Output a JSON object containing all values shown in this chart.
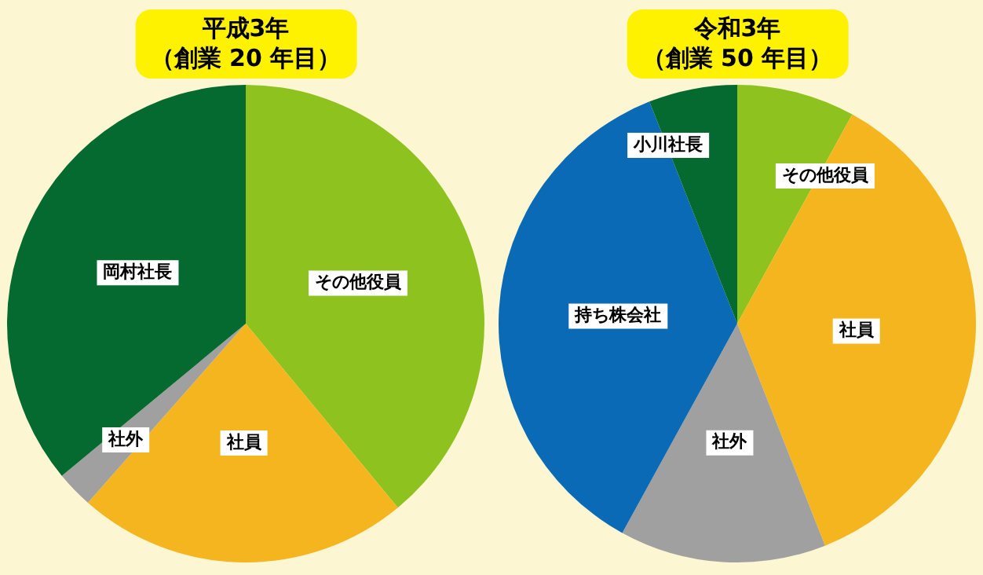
{
  "chart_data": [
    {
      "type": "pie",
      "title": "平成3年",
      "subtitle": "（創業 20 年目）",
      "categories": [
        "その他役員",
        "社員",
        "社外",
        "岡村社長"
      ],
      "values": [
        39,
        22.5,
        2.5,
        36
      ],
      "colors": [
        "#8dc21f",
        "#f5b51e",
        "#a0a0a0",
        "#056a2f"
      ],
      "legend": false
    },
    {
      "type": "pie",
      "title": "令和3年",
      "subtitle": "（創業 50 年目）",
      "categories": [
        "その他役員",
        "社員",
        "社外",
        "持ち株会社",
        "小川社長"
      ],
      "values": [
        8,
        36,
        14,
        36,
        6
      ],
      "colors": [
        "#8dc21f",
        "#f5b51e",
        "#a0a0a0",
        "#0a6ab6",
        "#056a2f"
      ],
      "legend": false
    }
  ]
}
